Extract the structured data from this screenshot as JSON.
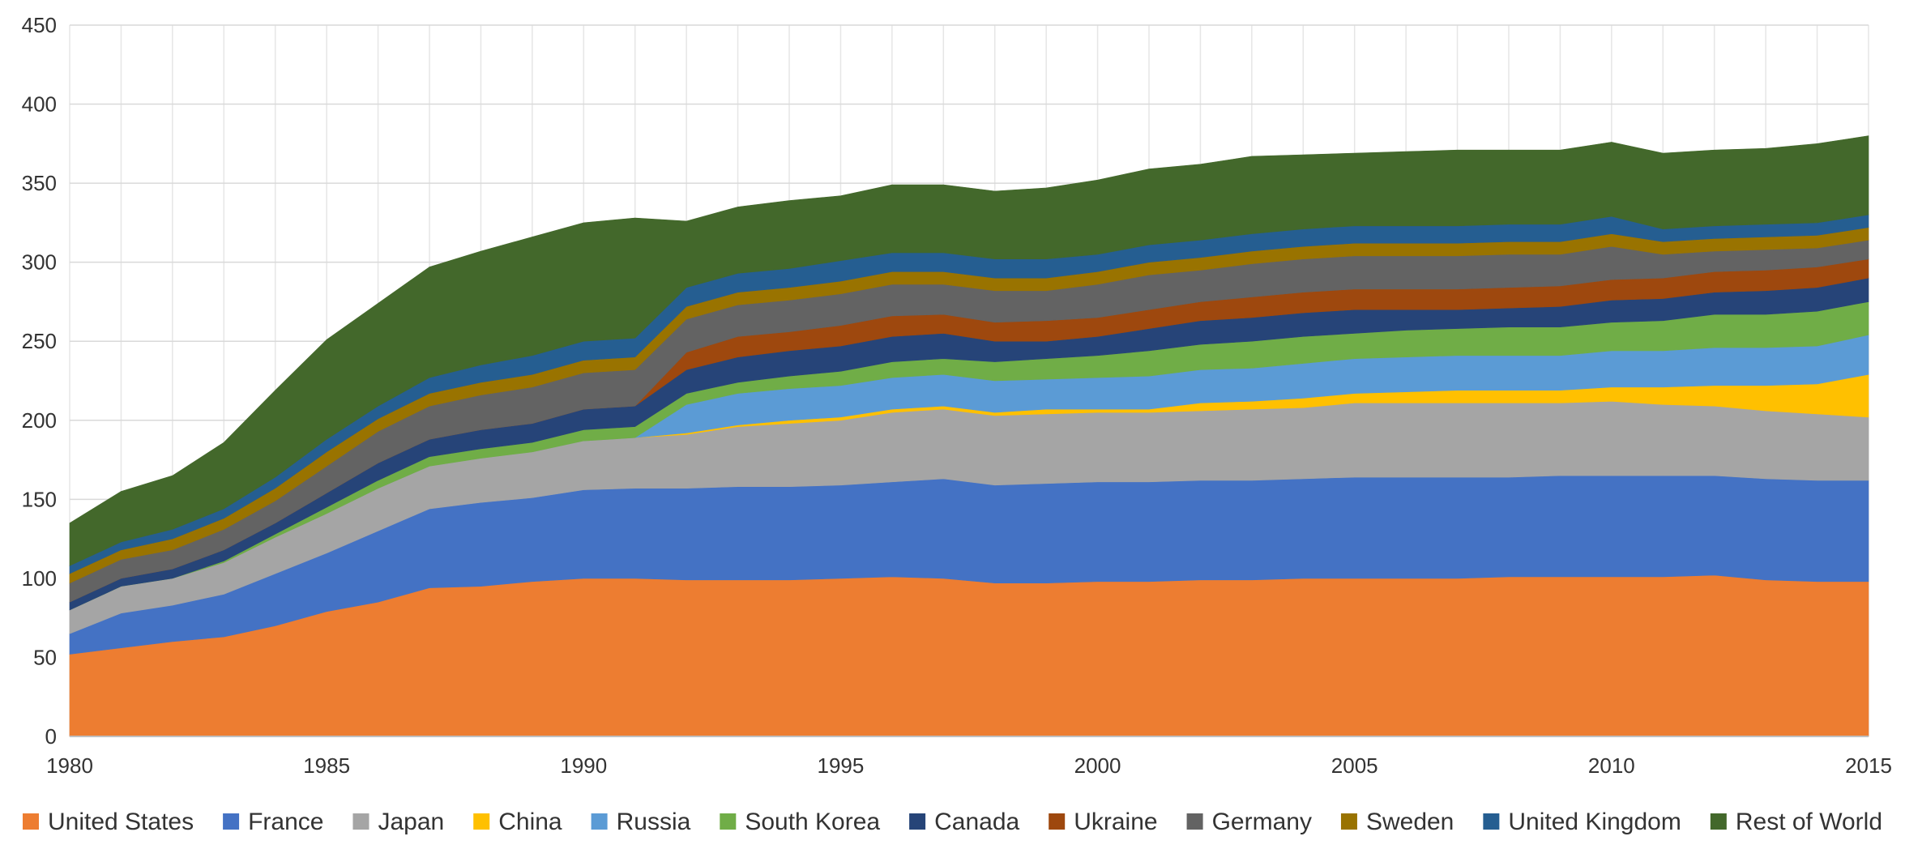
{
  "chart_data": {
    "type": "area",
    "stacked": true,
    "title": "",
    "xlabel": "",
    "ylabel": "",
    "x": [
      1980,
      1981,
      1982,
      1983,
      1984,
      1985,
      1986,
      1987,
      1988,
      1989,
      1990,
      1991,
      1992,
      1993,
      1994,
      1995,
      1996,
      1997,
      1998,
      1999,
      2000,
      2001,
      2002,
      2003,
      2004,
      2005,
      2006,
      2007,
      2008,
      2009,
      2010,
      2011,
      2012,
      2013,
      2014,
      2015
    ],
    "xlim": [
      1980,
      2015
    ],
    "ylim": [
      0,
      450
    ],
    "x_ticks": [
      "1980",
      "1985",
      "1990",
      "1995",
      "2000",
      "2005",
      "2010",
      "2015"
    ],
    "y_ticks": [
      "0",
      "50",
      "100",
      "150",
      "200",
      "250",
      "300",
      "350",
      "400",
      "450"
    ],
    "grid": "both",
    "legend_position": "bottom",
    "series": [
      {
        "name": "United States",
        "color": "#ED7D31",
        "values": [
          52,
          56,
          60,
          63,
          70,
          79,
          85,
          94,
          95,
          98,
          100,
          100,
          99,
          99,
          99,
          100,
          101,
          100,
          97,
          97,
          98,
          98,
          99,
          99,
          100,
          100,
          100,
          100,
          101,
          101,
          101,
          101,
          102,
          99,
          98,
          98
        ]
      },
      {
        "name": "France",
        "color": "#4472C4",
        "values": [
          13,
          22,
          23,
          27,
          33,
          37,
          45,
          50,
          53,
          53,
          56,
          57,
          58,
          59,
          59,
          59,
          60,
          63,
          62,
          63,
          63,
          63,
          63,
          63,
          63,
          64,
          64,
          64,
          63,
          64,
          64,
          64,
          63,
          64,
          64,
          64
        ]
      },
      {
        "name": "Japan",
        "color": "#A5A5A5",
        "values": [
          15,
          17,
          17,
          20,
          23,
          25,
          27,
          27,
          28,
          29,
          31,
          32,
          34,
          38,
          40,
          41,
          44,
          44,
          44,
          44,
          44,
          44,
          44,
          45,
          45,
          47,
          47,
          47,
          47,
          46,
          47,
          45,
          44,
          43,
          42,
          40
        ]
      },
      {
        "name": "China",
        "color": "#FFC000",
        "values": [
          0,
          0,
          0,
          0,
          0,
          0,
          0,
          0,
          0,
          0,
          0,
          0,
          1,
          1,
          2,
          2,
          2,
          2,
          2,
          3,
          2,
          2,
          5,
          5,
          6,
          6,
          7,
          8,
          8,
          8,
          9,
          11,
          13,
          16,
          19,
          27
        ]
      },
      {
        "name": "Russia",
        "color": "#5B9BD5",
        "values": [
          0,
          0,
          0,
          0,
          0,
          0,
          0,
          0,
          0,
          0,
          0,
          0,
          18,
          20,
          20,
          20,
          20,
          20,
          20,
          19,
          20,
          21,
          21,
          21,
          22,
          22,
          22,
          22,
          22,
          22,
          23,
          23,
          24,
          24,
          24,
          25
        ]
      },
      {
        "name": "South Korea",
        "color": "#70AD47",
        "values": [
          0,
          0,
          0,
          1,
          2,
          4,
          5,
          6,
          6,
          6,
          7,
          7,
          7,
          7,
          8,
          9,
          10,
          10,
          12,
          13,
          14,
          16,
          16,
          17,
          17,
          16,
          17,
          17,
          18,
          18,
          18,
          19,
          21,
          21,
          22,
          21
        ]
      },
      {
        "name": "Canada",
        "color": "#264478",
        "values": [
          5,
          5,
          6,
          7,
          7,
          9,
          11,
          11,
          12,
          12,
          13,
          13,
          15,
          16,
          16,
          16,
          16,
          16,
          13,
          11,
          12,
          14,
          15,
          15,
          15,
          15,
          13,
          12,
          12,
          13,
          14,
          14,
          14,
          15,
          15,
          15
        ]
      },
      {
        "name": "Ukraine",
        "color": "#9E480E",
        "values": [
          0,
          0,
          0,
          0,
          0,
          0,
          0,
          0,
          0,
          0,
          0,
          0,
          11,
          13,
          12,
          13,
          13,
          12,
          12,
          13,
          12,
          12,
          12,
          13,
          13,
          13,
          13,
          13,
          13,
          13,
          13,
          13,
          13,
          13,
          13,
          12
        ]
      },
      {
        "name": "Germany",
        "color": "#636363",
        "values": [
          12,
          12,
          12,
          13,
          14,
          17,
          20,
          21,
          22,
          23,
          23,
          23,
          21,
          20,
          20,
          20,
          20,
          19,
          20,
          19,
          21,
          22,
          20,
          21,
          21,
          21,
          21,
          21,
          21,
          20,
          21,
          15,
          13,
          13,
          12,
          12
        ]
      },
      {
        "name": "Sweden",
        "color": "#997300",
        "values": [
          6,
          6,
          7,
          7,
          8,
          9,
          8,
          8,
          8,
          8,
          8,
          8,
          8,
          8,
          8,
          8,
          8,
          8,
          8,
          8,
          8,
          8,
          8,
          8,
          8,
          8,
          8,
          8,
          8,
          8,
          8,
          8,
          8,
          8,
          8,
          8
        ]
      },
      {
        "name": "United Kingdom",
        "color": "#255E91",
        "values": [
          5,
          5,
          6,
          6,
          7,
          8,
          8,
          10,
          11,
          12,
          12,
          12,
          12,
          12,
          12,
          13,
          12,
          12,
          12,
          12,
          11,
          11,
          11,
          11,
          11,
          11,
          11,
          11,
          11,
          11,
          11,
          8,
          8,
          8,
          8,
          8
        ]
      },
      {
        "name": "Rest of World",
        "color": "#43682B",
        "values": [
          27,
          32,
          34,
          42,
          55,
          63,
          65,
          70,
          72,
          75,
          75,
          76,
          42,
          42,
          43,
          41,
          43,
          43,
          43,
          45,
          47,
          48,
          48,
          49,
          47,
          46,
          47,
          48,
          47,
          47,
          47,
          48,
          48,
          48,
          50,
          50
        ]
      }
    ]
  }
}
